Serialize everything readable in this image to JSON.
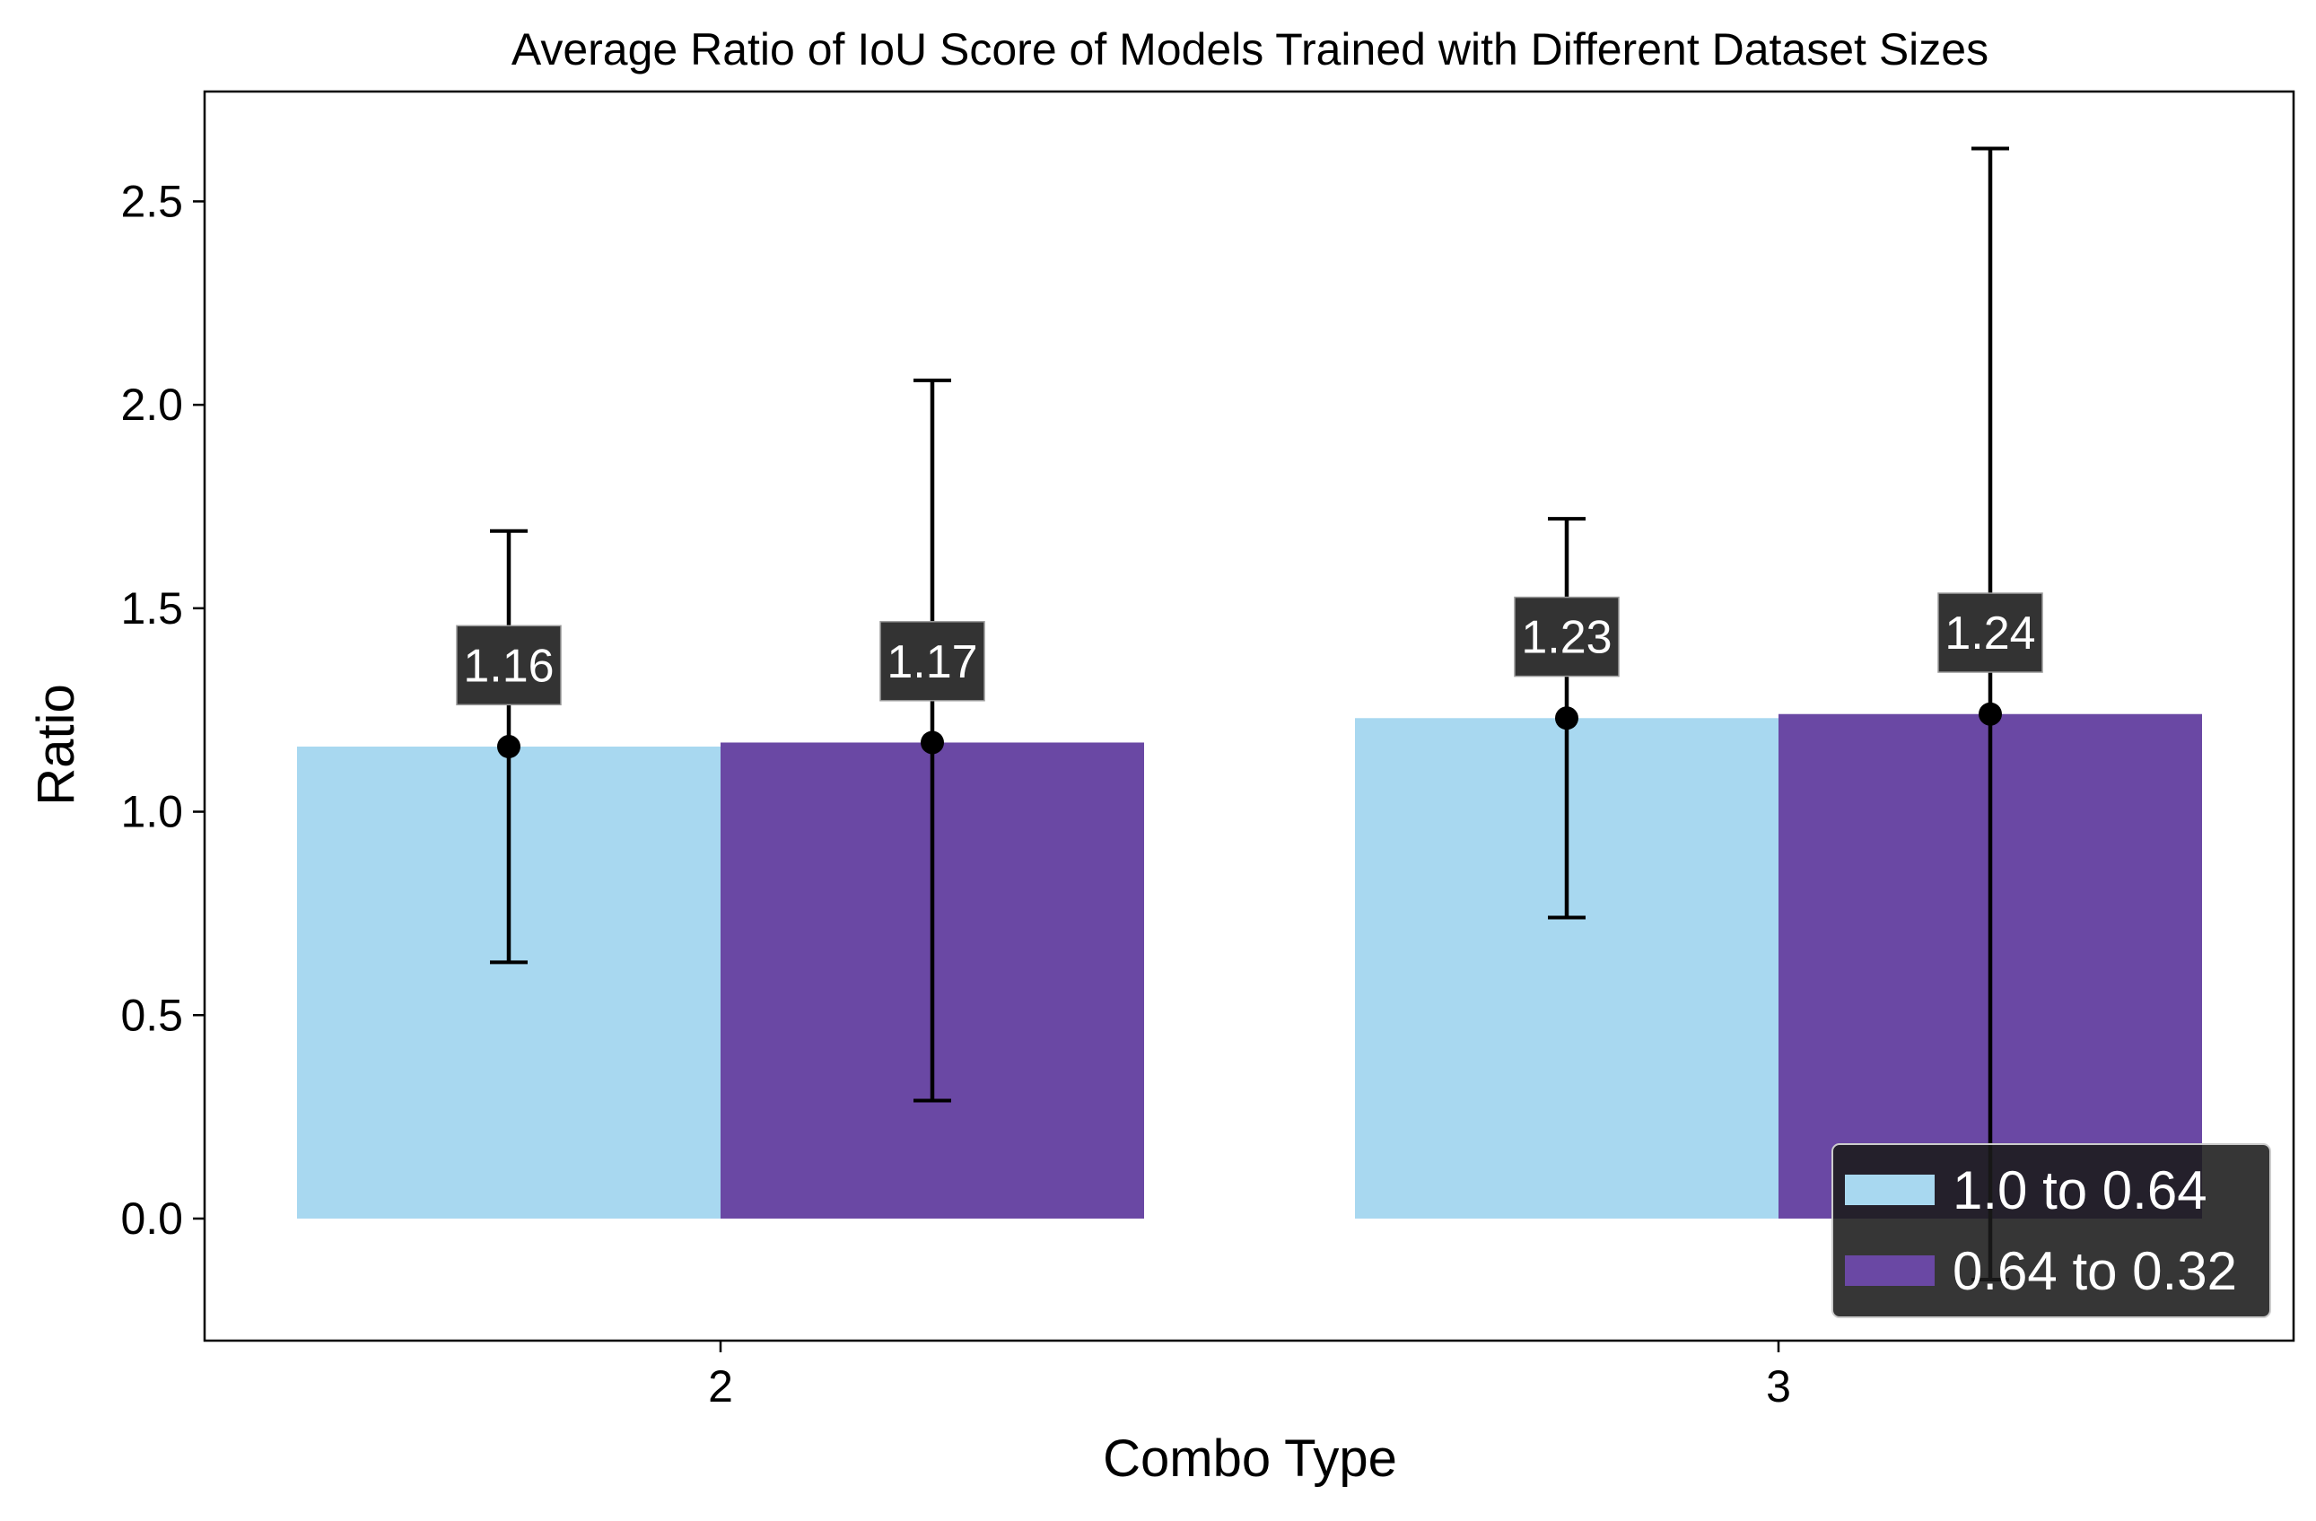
{
  "chart_data": {
    "type": "bar",
    "title": "Average Ratio of IoU Score of Models Trained with Different Dataset Sizes",
    "xlabel": "Combo Type",
    "ylabel": "Ratio",
    "categories": [
      "2",
      "3"
    ],
    "ylim": [
      -0.3,
      2.77
    ],
    "yticks": [
      0.0,
      0.5,
      1.0,
      1.5,
      2.0,
      2.5
    ],
    "ytick_labels": [
      "0.0",
      "0.5",
      "1.0",
      "1.5",
      "2.0",
      "2.5"
    ],
    "grid": false,
    "legend_position": "bottom-right",
    "series": [
      {
        "name": "1.0 to 0.64",
        "color": "#a8d8f0",
        "values": [
          1.16,
          1.23
        ],
        "value_labels": [
          "1.16",
          "1.23"
        ],
        "error_low": [
          0.63,
          0.74
        ],
        "error_high": [
          1.69,
          1.72
        ]
      },
      {
        "name": "0.64 to 0.32",
        "color": "#6a48a4",
        "values": [
          1.17,
          1.24
        ],
        "value_labels": [
          "1.17",
          "1.24"
        ],
        "error_low": [
          0.29,
          -0.15
        ],
        "error_high": [
          2.06,
          2.63
        ]
      }
    ]
  }
}
